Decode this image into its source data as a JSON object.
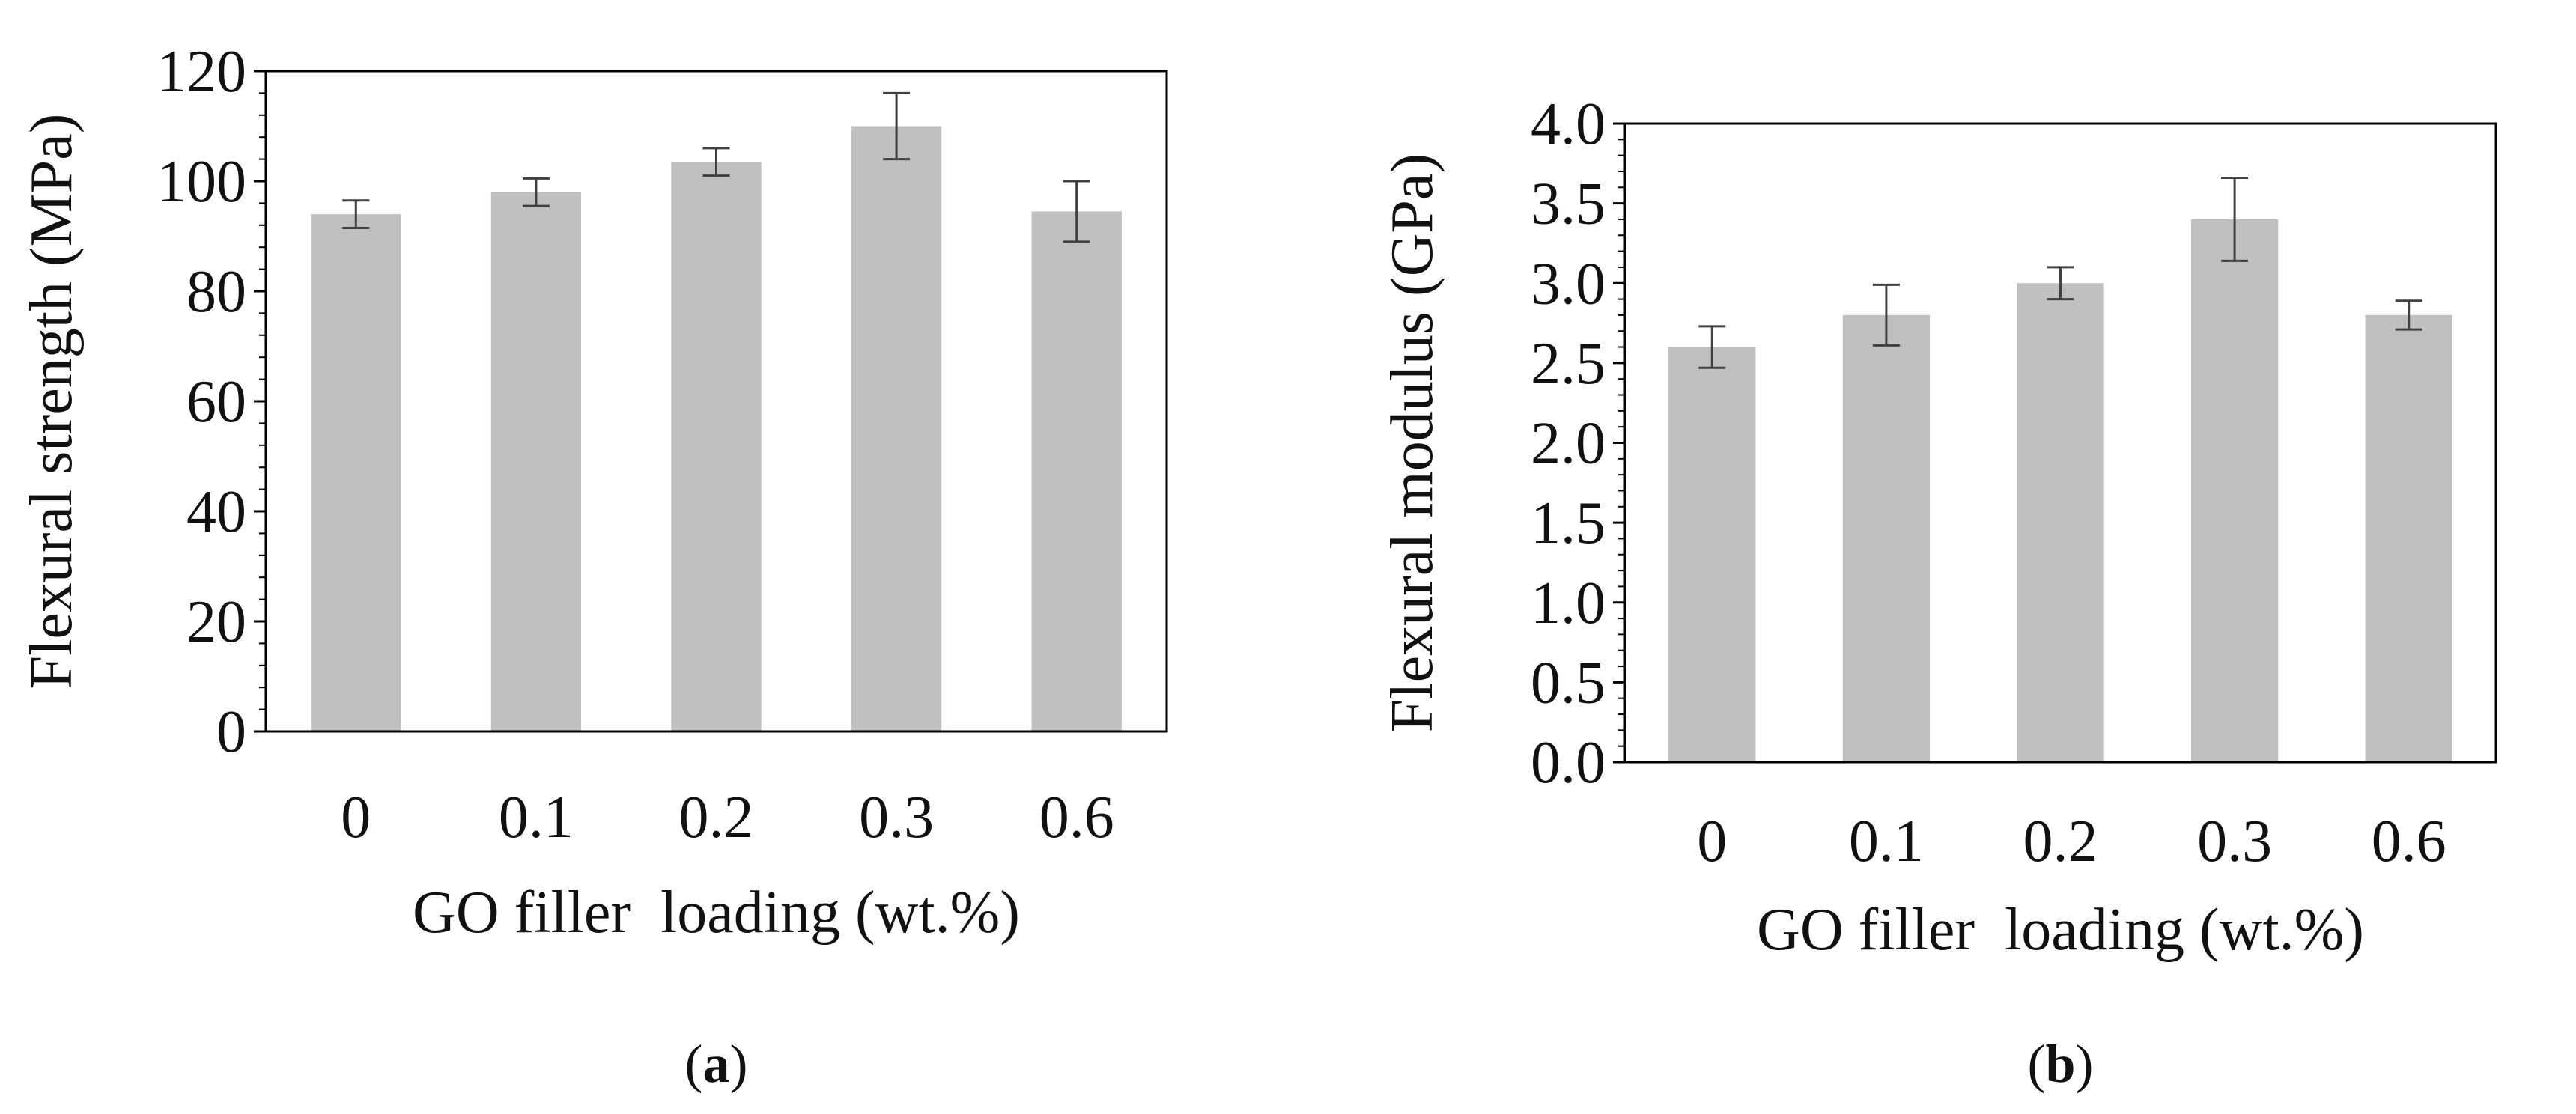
{
  "colors": {
    "bar": "#bfbfbf",
    "axis": "#000000",
    "error_bar": "#404040",
    "background": "#ffffff"
  },
  "chart_data": [
    {
      "type": "bar",
      "panel": "a",
      "panel_caption": {
        "open": "(",
        "letter": "a",
        "close": ")"
      },
      "categories": [
        "0",
        "0.1",
        "0.2",
        "0.3",
        "0.6"
      ],
      "values": [
        94,
        98,
        103.5,
        110,
        94.5
      ],
      "errors": [
        2.5,
        2.5,
        2.5,
        6,
        5.5
      ],
      "xlabel": "GO filler  loading (wt.%)",
      "ylabel": "Flexural strength (MPa)",
      "ylim": [
        0,
        120
      ],
      "yticks": [
        0,
        20,
        40,
        60,
        80,
        100,
        120
      ],
      "ytick_labels": [
        "0",
        "20",
        "40",
        "60",
        "80",
        "100",
        "120"
      ],
      "minor_ticks_per_major": 5,
      "grid": false
    },
    {
      "type": "bar",
      "panel": "b",
      "panel_caption": {
        "open": "(",
        "letter": "b",
        "close": ")"
      },
      "categories": [
        "0",
        "0.1",
        "0.2",
        "0.3",
        "0.6"
      ],
      "values": [
        2.6,
        2.8,
        3.0,
        3.4,
        2.8
      ],
      "errors": [
        0.13,
        0.19,
        0.1,
        0.26,
        0.09
      ],
      "xlabel": "GO filler  loading (wt.%)",
      "ylabel": "Flexural modulus (GPa)",
      "ylim": [
        0,
        4
      ],
      "yticks": [
        0,
        0.5,
        1,
        1.5,
        2,
        2.5,
        3,
        3.5,
        4
      ],
      "ytick_labels": [
        "0.0",
        "0.5",
        "1.0",
        "1.5",
        "2.0",
        "2.5",
        "3.0",
        "3.5",
        "4.0"
      ],
      "minor_ticks_per_major": 5,
      "grid": false
    }
  ]
}
